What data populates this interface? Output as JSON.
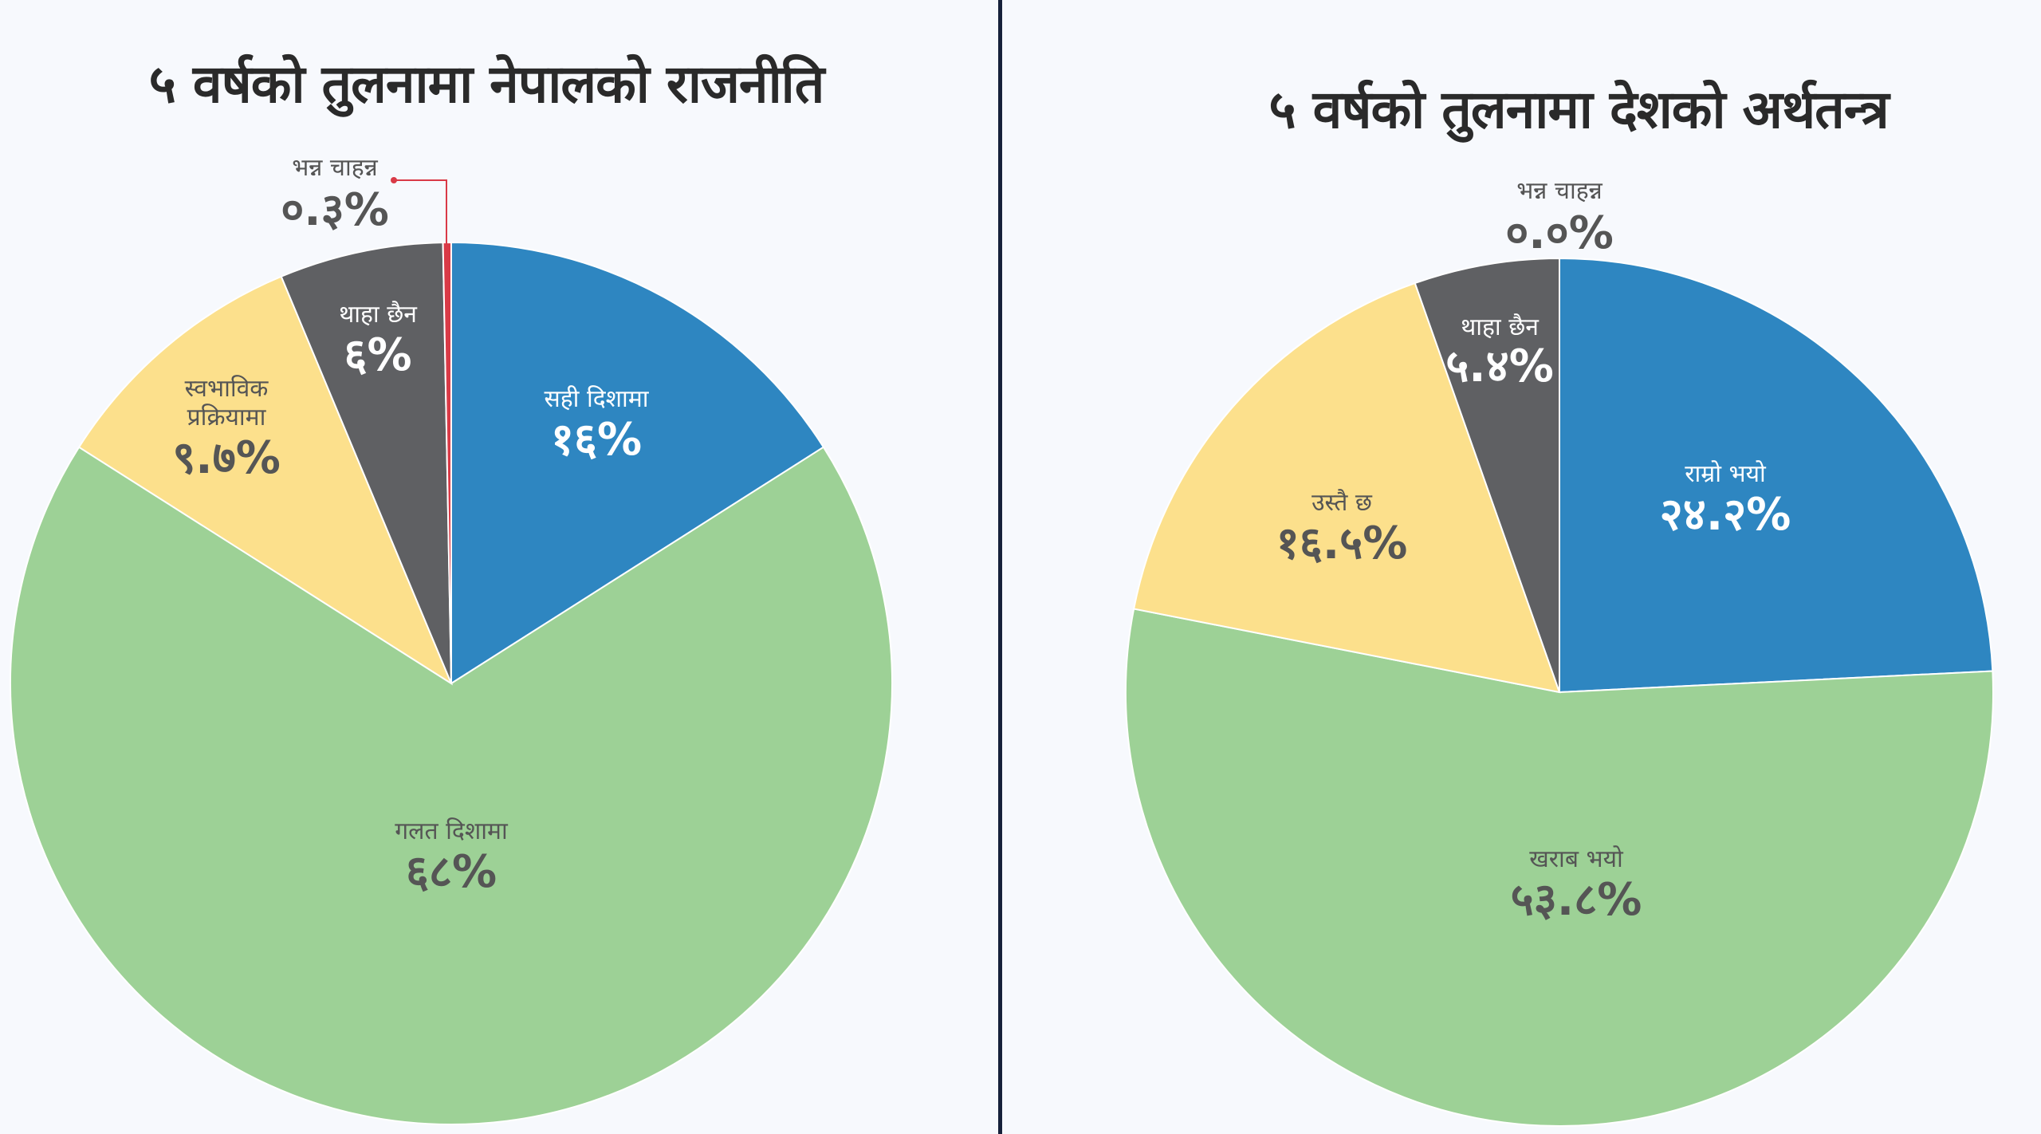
{
  "chart_data": [
    {
      "type": "pie",
      "title": "५ वर्षको तुलनामा नेपालको राजनीति",
      "series": [
        {
          "name": "सही दिशामा",
          "value": 16,
          "value_label": "१६%",
          "color": "#2e86c1"
        },
        {
          "name": "गलत दिशामा",
          "value": 68,
          "value_label": "६८%",
          "color": "#9dd196"
        },
        {
          "name": "स्वभाविक प्रक्रियामा",
          "value": 9.7,
          "value_label": "९.७%",
          "color": "#fce08c"
        },
        {
          "name": "थाहा छैन",
          "value": 6,
          "value_label": "६%",
          "color": "#5f6063"
        },
        {
          "name": "भन्न चाहन्न",
          "value": 0.3,
          "value_label": "०.३%",
          "color": "#d93a47"
        }
      ]
    },
    {
      "type": "pie",
      "title": "५ वर्षको तुलनामा देशको अर्थतन्त्र",
      "series": [
        {
          "name": "राम्रो भयो",
          "value": 24.2,
          "value_label": "२४.२%",
          "color": "#2e86c1"
        },
        {
          "name": "खराब भयो",
          "value": 53.8,
          "value_label": "५३.८%",
          "color": "#9dd196"
        },
        {
          "name": "उस्तै छ",
          "value": 16.5,
          "value_label": "१६.५%",
          "color": "#fce08c"
        },
        {
          "name": "थाहा छैन",
          "value": 5.4,
          "value_label": "५.४%",
          "color": "#5f6063"
        },
        {
          "name": "भन्न चाहन्न",
          "value": 0.0,
          "value_label": "०.०%",
          "color": "#d93a47"
        }
      ]
    }
  ]
}
